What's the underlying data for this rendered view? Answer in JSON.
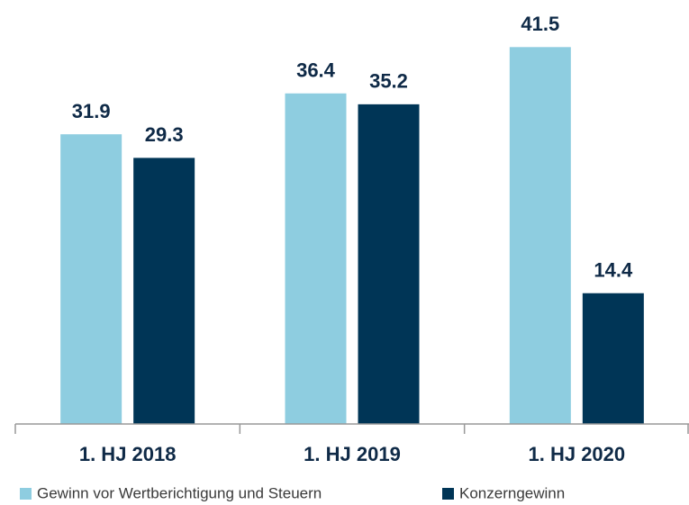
{
  "chart_data": {
    "type": "bar",
    "categories": [
      "1. HJ 2018",
      "1. HJ 2019",
      "1. HJ 2020"
    ],
    "series": [
      {
        "name": "Gewinn vor Wertberichtigung und Steuern",
        "color": "#8ecde0",
        "values": [
          31.9,
          36.4,
          41.5
        ]
      },
      {
        "name": "Konzerngewinn",
        "color": "#003556",
        "values": [
          29.3,
          35.2,
          14.4
        ]
      }
    ],
    "ylim": [
      0,
      45
    ],
    "legend": "bottom"
  }
}
